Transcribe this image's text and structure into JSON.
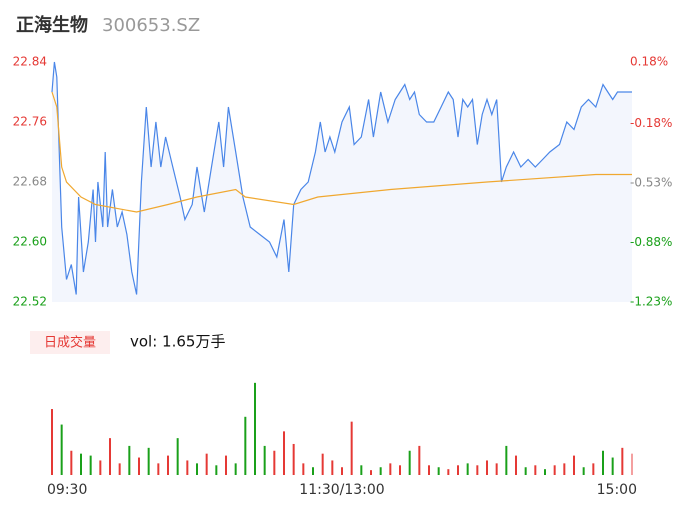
{
  "chart_data": {
    "type": "intraday",
    "title": "正海生物",
    "code": "300653.SZ",
    "xlim": [
      0,
      240
    ],
    "xticks": [
      {
        "value": 0,
        "label": "09:30"
      },
      {
        "value": 120,
        "label": "11:30/13:00"
      },
      {
        "value": 240,
        "label": "15:00"
      }
    ],
    "ylim": [
      22.52,
      22.84
    ],
    "yticks": [
      22.84,
      22.76,
      22.68,
      {
        "value": 22.6,
        "label": "22.60"
      },
      22.52
    ],
    "ytick_colors": [
      "#e53935",
      "#e53935",
      "#888888",
      "#1aa01a",
      "#1aa01a"
    ],
    "y2lim": [
      -1.23,
      0.18
    ],
    "y2ticks": [
      {
        "value": 0.18,
        "label": "0.18%"
      },
      {
        "value": -0.18,
        "label": "-0.18%"
      },
      {
        "value": -0.53,
        "label": "-0.53%"
      },
      {
        "value": -0.88,
        "label": "-0.88%"
      },
      {
        "value": -1.23,
        "label": "-1.23%"
      }
    ],
    "grid": false,
    "series": [
      {
        "color": "#4a86e8",
        "fill": "#f3f6fd",
        "x": [
          0,
          1,
          2,
          4,
          6,
          8,
          10,
          11,
          13,
          15,
          17,
          18,
          19,
          21,
          22,
          23,
          25,
          27,
          29,
          31,
          33,
          35,
          37,
          39,
          41,
          43,
          45,
          47,
          50,
          53,
          55,
          58,
          60,
          63,
          66,
          69,
          71,
          73,
          76,
          79,
          82,
          86,
          90,
          93,
          96,
          98,
          100,
          103,
          106,
          109,
          111,
          113,
          115,
          117,
          120,
          123,
          125,
          128,
          131,
          133,
          136,
          139,
          142,
          144,
          146,
          148,
          150,
          152,
          155,
          158,
          161,
          164,
          166,
          168,
          170,
          172,
          174,
          176,
          178,
          180,
          182,
          184,
          186,
          188,
          191,
          194,
          197,
          200,
          203,
          206,
          210,
          213,
          216,
          219,
          222,
          225,
          228,
          230,
          232,
          234,
          237,
          240
        ],
        "values": [
          22.8,
          22.84,
          22.82,
          22.62,
          22.55,
          22.57,
          22.53,
          22.66,
          22.56,
          22.6,
          22.67,
          22.6,
          22.68,
          22.62,
          22.72,
          22.62,
          22.67,
          22.62,
          22.64,
          22.61,
          22.56,
          22.53,
          22.68,
          22.78,
          22.7,
          22.76,
          22.7,
          22.74,
          22.7,
          22.66,
          22.63,
          22.65,
          22.7,
          22.64,
          22.7,
          22.76,
          22.7,
          22.78,
          22.72,
          22.66,
          22.62,
          22.61,
          22.6,
          22.58,
          22.63,
          22.56,
          22.65,
          22.67,
          22.68,
          22.72,
          22.76,
          22.72,
          22.74,
          22.72,
          22.76,
          22.78,
          22.73,
          22.74,
          22.79,
          22.74,
          22.8,
          22.76,
          22.79,
          22.8,
          22.81,
          22.79,
          22.8,
          22.77,
          22.76,
          22.76,
          22.78,
          22.8,
          22.79,
          22.74,
          22.79,
          22.78,
          22.79,
          22.73,
          22.77,
          22.79,
          22.77,
          22.79,
          22.68,
          22.7,
          22.72,
          22.7,
          22.71,
          22.7,
          22.71,
          22.72,
          22.73,
          22.76,
          22.75,
          22.78,
          22.79,
          22.78,
          22.81,
          22.8,
          22.79,
          22.8,
          22.8,
          22.8
        ]
      },
      {
        "color": "#f0a830",
        "x": [
          0,
          2,
          4,
          6,
          12,
          18,
          35,
          48,
          60,
          76,
          80,
          100,
          110,
          140,
          180,
          225,
          240
        ],
        "values": [
          22.8,
          22.78,
          22.7,
          22.68,
          22.66,
          22.65,
          22.64,
          22.65,
          22.66,
          22.67,
          22.66,
          22.65,
          22.66,
          22.67,
          22.68,
          22.69,
          22.69
        ]
      }
    ],
    "volume": {
      "label": "日成交量",
      "text": "vol: 1.65万手",
      "ylim": [
        0,
        100
      ],
      "x": [
        0,
        4,
        8,
        12,
        16,
        20,
        24,
        28,
        32,
        36,
        40,
        44,
        48,
        52,
        56,
        60,
        64,
        68,
        72,
        76,
        80,
        84,
        88,
        92,
        96,
        100,
        104,
        108,
        112,
        116,
        120,
        124,
        128,
        132,
        136,
        140,
        144,
        148,
        152,
        156,
        160,
        164,
        168,
        172,
        176,
        180,
        184,
        188,
        192,
        196,
        200,
        204,
        208,
        212,
        216,
        220,
        224,
        228,
        232,
        236,
        240
      ],
      "values": [
        68,
        52,
        25,
        22,
        20,
        15,
        38,
        12,
        30,
        18,
        28,
        12,
        20,
        38,
        15,
        12,
        22,
        10,
        20,
        12,
        60,
        95,
        30,
        25,
        45,
        32,
        12,
        8,
        22,
        15,
        8,
        55,
        10,
        5,
        8,
        12,
        10,
        25,
        30,
        10,
        8,
        6,
        10,
        12,
        10,
        15,
        12,
        30,
        20,
        8,
        10,
        6,
        10,
        12,
        20,
        8,
        12,
        25,
        18,
        28,
        22
      ],
      "colors": [
        "#e53935",
        "#1aa01a",
        "#e53935",
        "#1aa01a",
        "#1aa01a",
        "#e53935",
        "#e53935",
        "#e53935",
        "#1aa01a",
        "#e53935",
        "#1aa01a",
        "#e53935",
        "#e53935",
        "#1aa01a",
        "#e53935",
        "#1aa01a",
        "#e53935",
        "#1aa01a",
        "#e53935",
        "#1aa01a",
        "#1aa01a",
        "#1aa01a",
        "#1aa01a",
        "#e53935",
        "#e53935",
        "#e53935",
        "#e53935",
        "#1aa01a",
        "#e53935",
        "#e53935",
        "#e53935",
        "#e53935",
        "#1aa01a",
        "#e53935",
        "#1aa01a",
        "#e53935",
        "#e53935",
        "#1aa01a",
        "#e53935",
        "#e53935",
        "#1aa01a",
        "#e53935",
        "#e53935",
        "#1aa01a",
        "#e53935",
        "#e53935",
        "#e53935",
        "#1aa01a",
        "#e53935",
        "#1aa01a",
        "#e53935",
        "#1aa01a",
        "#e53935",
        "#e53935",
        "#e53935",
        "#1aa01a",
        "#e53935",
        "#1aa01a",
        "#1aa01a",
        "#e53935",
        "#f4a0a0"
      ]
    }
  }
}
